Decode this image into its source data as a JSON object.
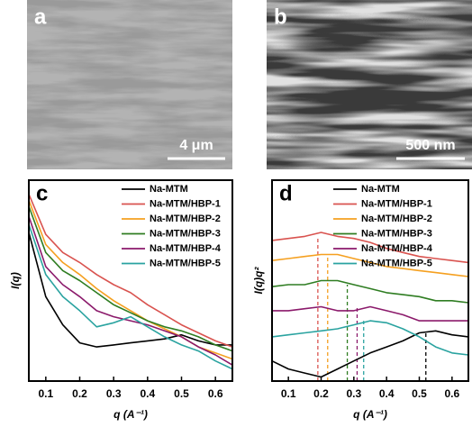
{
  "images": [
    {
      "label": "a",
      "scale_bar": "4 μm"
    },
    {
      "label": "b",
      "scale_bar": "500 nm"
    }
  ],
  "chart_data": [
    {
      "type": "line",
      "panel": "c",
      "xlabel": "q (A⁻¹)",
      "ylabel": "I(q)",
      "x": [
        0.05,
        0.1,
        0.15,
        0.2,
        0.25,
        0.3,
        0.35,
        0.4,
        0.45,
        0.5,
        0.55,
        0.6,
        0.65
      ],
      "xlim": [
        0.05,
        0.65
      ],
      "xticks": [
        0.1,
        0.2,
        0.3,
        0.4,
        0.5,
        0.6
      ],
      "ylim": [
        0,
        10
      ],
      "series": [
        {
          "name": "Na-MTM",
          "color": "#000000",
          "values": [
            7.4,
            4.2,
            2.8,
            1.9,
            1.7,
            1.8,
            1.9,
            2.0,
            2.1,
            2.3,
            2.0,
            1.8,
            1.8
          ]
        },
        {
          "name": "Na-MTM/HBP-1",
          "color": "#d9534f",
          "values": [
            9.3,
            7.3,
            6.4,
            5.9,
            5.3,
            4.8,
            4.4,
            3.8,
            3.3,
            2.8,
            2.4,
            2.0,
            1.7
          ]
        },
        {
          "name": "Na-MTM/HBP-2",
          "color": "#f5a020",
          "values": [
            9.0,
            6.8,
            5.9,
            5.3,
            4.6,
            4.0,
            3.5,
            3.0,
            2.6,
            2.2,
            1.7,
            1.4,
            1.1
          ]
        },
        {
          "name": "Na-MTM/HBP-3",
          "color": "#2f7d22",
          "values": [
            8.7,
            6.4,
            5.5,
            5.0,
            4.4,
            3.8,
            3.4,
            3.0,
            2.7,
            2.5,
            2.2,
            1.8,
            1.5
          ]
        },
        {
          "name": "Na-MTM/HBP-4",
          "color": "#8b1a6b",
          "values": [
            8.2,
            5.7,
            4.8,
            4.2,
            3.5,
            3.2,
            3.0,
            2.8,
            2.5,
            2.2,
            1.7,
            1.3,
            0.8
          ]
        },
        {
          "name": "Na-MTM/HBP-5",
          "color": "#2aa3a0",
          "values": [
            7.8,
            5.3,
            4.2,
            3.5,
            2.7,
            2.9,
            3.2,
            2.7,
            2.2,
            1.8,
            1.5,
            1.0,
            0.6
          ]
        }
      ]
    },
    {
      "type": "line",
      "panel": "d",
      "xlabel": "q (A⁻¹)",
      "ylabel": "I(q)q²",
      "x": [
        0.05,
        0.1,
        0.15,
        0.2,
        0.25,
        0.3,
        0.35,
        0.4,
        0.45,
        0.5,
        0.55,
        0.6,
        0.65
      ],
      "xlim": [
        0.05,
        0.65
      ],
      "xticks": [
        0.1,
        0.2,
        0.3,
        0.4,
        0.5,
        0.6
      ],
      "ylim": [
        0,
        10
      ],
      "series": [
        {
          "name": "Na-MTM",
          "color": "#000000",
          "values": [
            1.0,
            0.6,
            0.4,
            0.2,
            0.6,
            1.0,
            1.4,
            1.7,
            2.0,
            2.4,
            2.5,
            2.3,
            2.2
          ]
        },
        {
          "name": "Na-MTM/HBP-1",
          "color": "#d9534f",
          "values": [
            7.0,
            7.1,
            7.2,
            7.4,
            7.2,
            7.1,
            6.9,
            6.6,
            6.4,
            6.2,
            6.1,
            6.0,
            5.9
          ]
        },
        {
          "name": "Na-MTM/HBP-2",
          "color": "#f5a020",
          "values": [
            6.0,
            6.1,
            6.2,
            6.3,
            6.3,
            6.1,
            5.9,
            5.7,
            5.6,
            5.5,
            5.4,
            5.3,
            5.2
          ]
        },
        {
          "name": "Na-MTM/HBP-3",
          "color": "#2f7d22",
          "values": [
            4.7,
            4.8,
            4.8,
            5.0,
            5.0,
            4.8,
            4.6,
            4.4,
            4.3,
            4.2,
            4.0,
            4.0,
            3.9
          ]
        },
        {
          "name": "Na-MTM/HBP-4",
          "color": "#8b1a6b",
          "values": [
            3.5,
            3.5,
            3.6,
            3.7,
            3.5,
            3.5,
            3.7,
            3.5,
            3.3,
            3.0,
            3.0,
            3.0,
            3.0
          ]
        },
        {
          "name": "Na-MTM/HBP-5",
          "color": "#2aa3a0",
          "values": [
            2.2,
            2.3,
            2.4,
            2.5,
            2.6,
            2.8,
            3.0,
            2.9,
            2.6,
            2.2,
            1.7,
            1.4,
            1.3
          ]
        }
      ],
      "reference_lines": [
        {
          "x": 0.19,
          "y": 7.2,
          "color": "#d9534f"
        },
        {
          "x": 0.22,
          "y": 6.3,
          "color": "#f5a020"
        },
        {
          "x": 0.28,
          "y": 4.8,
          "color": "#2f7d22"
        },
        {
          "x": 0.31,
          "y": 3.7,
          "color": "#8b1a6b"
        },
        {
          "x": 0.33,
          "y": 3.0,
          "color": "#2aa3a0"
        },
        {
          "x": 0.52,
          "y": 2.5,
          "color": "#000000"
        }
      ]
    }
  ]
}
